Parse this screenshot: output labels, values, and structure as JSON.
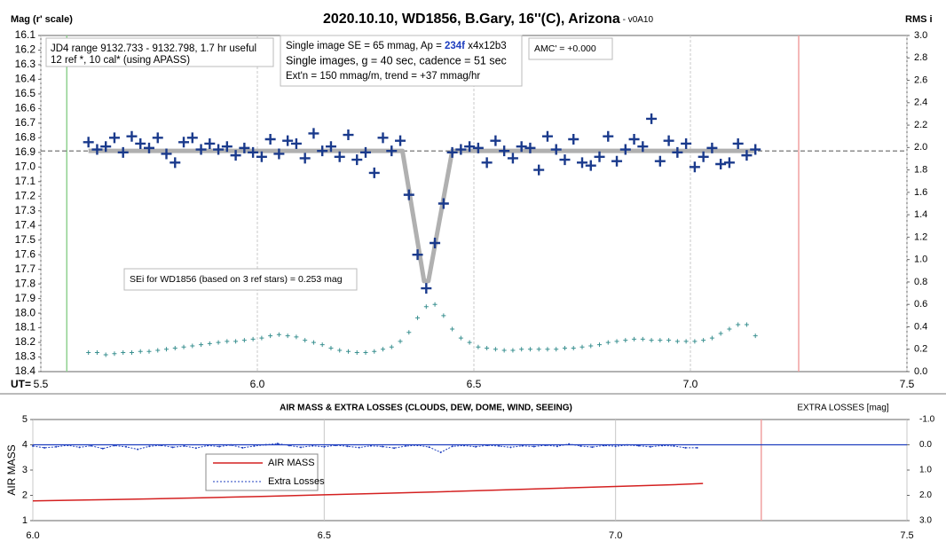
{
  "chart_data": [
    {
      "type": "scatter",
      "title": "2020.10.10, WD1856, B.Gary, 16''(C), Arizona",
      "subtitle": " - v0A10",
      "ylabel": "Mag (r' scale)",
      "y2label": "RMS i",
      "xlabel": "UT=",
      "xlim": [
        5.5,
        7.5
      ],
      "xticks": [
        5.5,
        {
          "value": 6,
          "label": "6.0"
        },
        6.5,
        {
          "value": 7,
          "label": "7.0"
        },
        7.5
      ],
      "ylim": [
        16.1,
        18.4
      ],
      "y_reverse": true,
      "yticks": [
        16.1,
        16.2,
        16.3,
        16.4,
        16.5,
        16.6,
        16.7,
        16.8,
        16.9,
        {
          "value": 17,
          "label": "17.0"
        },
        17.1,
        17.2,
        17.3,
        17.4,
        17.5,
        17.6,
        17.7,
        17.8,
        17.9,
        {
          "value": 18,
          "label": "18.0"
        },
        18.1,
        18.2,
        18.3,
        18.4
      ],
      "y2lim": [
        0,
        3
      ],
      "y2ticks": [
        {
          "value": 0,
          "label": "0.0"
        },
        0.2,
        0.4,
        0.6,
        0.8,
        {
          "value": 1,
          "label": "1.0"
        },
        1.2,
        1.4,
        1.6,
        1.8,
        {
          "value": 2,
          "label": "2.0"
        },
        2.2,
        2.4,
        2.6,
        2.8,
        {
          "value": 3,
          "label": "3.0"
        }
      ],
      "grid": "x",
      "vlines": [
        {
          "value": 5.56,
          "color": "#8fd18f"
        },
        {
          "value": 7.25,
          "color": "#f0a0a0"
        }
      ],
      "hlines": [
        {
          "value": 16.89,
          "color": "#666666",
          "dash": true
        }
      ],
      "x": [
        5.61,
        5.63,
        5.65,
        5.67,
        5.69,
        5.71,
        5.73,
        5.75,
        5.77,
        5.79,
        5.81,
        5.83,
        5.85,
        5.87,
        5.89,
        5.91,
        5.93,
        5.95,
        5.97,
        5.99,
        6.01,
        6.03,
        6.05,
        6.07,
        6.09,
        6.11,
        6.13,
        6.15,
        6.17,
        6.19,
        6.21,
        6.23,
        6.25,
        6.27,
        6.29,
        6.31,
        6.33,
        6.35,
        6.37,
        6.39,
        6.41,
        6.43,
        6.45,
        6.47,
        6.49,
        6.51,
        6.53,
        6.55,
        6.57,
        6.59,
        6.61,
        6.63,
        6.65,
        6.67,
        6.69,
        6.71,
        6.73,
        6.75,
        6.77,
        6.79,
        6.81,
        6.83,
        6.85,
        6.87,
        6.89,
        6.91,
        6.93,
        6.95,
        6.97,
        6.99,
        7.01,
        7.03,
        7.05,
        7.07,
        7.09,
        7.11,
        7.13,
        7.15
      ],
      "series": [
        {
          "color": "#b0b0b0",
          "mode": "line",
          "width": 5,
          "x": [
            5.61,
            6.335,
            6.385,
            6.395,
            6.45,
            7.15
          ],
          "values": [
            16.89,
            16.89,
            17.78,
            17.78,
            16.89,
            16.89
          ]
        },
        {
          "color": "#1a3a8c",
          "mode": "markers",
          "size": 6,
          "values": [
            16.83,
            16.88,
            16.86,
            16.8,
            16.9,
            16.79,
            16.84,
            16.87,
            16.8,
            16.91,
            16.97,
            16.83,
            16.8,
            16.88,
            16.84,
            16.88,
            16.86,
            16.92,
            16.87,
            16.9,
            16.93,
            16.81,
            16.91,
            16.82,
            16.84,
            16.94,
            16.77,
            16.89,
            16.86,
            16.93,
            16.78,
            16.95,
            16.9,
            17.04,
            16.8,
            16.89,
            16.82,
            17.19,
            17.6,
            17.83,
            17.52,
            17.25,
            16.9,
            16.88,
            16.86,
            16.87,
            16.97,
            16.82,
            16.89,
            16.94,
            16.86,
            16.87,
            17.02,
            16.79,
            16.88,
            16.95,
            16.81,
            16.97,
            16.99,
            16.93,
            16.79,
            16.96,
            16.88,
            16.81,
            16.86,
            16.67,
            16.96,
            16.82,
            16.9,
            16.84,
            17,
            16.93,
            16.87,
            16.98,
            16.97,
            16.84,
            16.92,
            16.88
          ]
        },
        {
          "color": "#3a9090",
          "mode": "markers",
          "size": 2.5,
          "axis": "y2",
          "values": [
            0.17,
            0.17,
            0.15,
            0.16,
            0.17,
            0.17,
            0.18,
            0.18,
            0.19,
            0.2,
            0.21,
            0.22,
            0.23,
            0.24,
            0.25,
            0.26,
            0.27,
            0.27,
            0.28,
            0.29,
            0.3,
            0.32,
            0.33,
            0.32,
            0.31,
            0.28,
            0.26,
            0.24,
            0.21,
            0.19,
            0.18,
            0.17,
            0.17,
            0.18,
            0.2,
            0.22,
            0.27,
            0.35,
            0.48,
            0.58,
            0.6,
            0.5,
            0.38,
            0.3,
            0.26,
            0.22,
            0.21,
            0.2,
            0.19,
            0.19,
            0.2,
            0.2,
            0.2,
            0.2,
            0.2,
            0.21,
            0.21,
            0.22,
            0.23,
            0.24,
            0.26,
            0.27,
            0.28,
            0.29,
            0.29,
            0.28,
            0.28,
            0.28,
            0.27,
            0.27,
            0.27,
            0.28,
            0.3,
            0.34,
            0.38,
            0.42,
            0.42,
            0.32
          ]
        }
      ],
      "annotations": [
        {
          "lines": [
            "JD4 range 9132.733 - 9132.798, 1.7 hr useful",
            " 12 ref *, 10 cal* (using APASS)"
          ]
        },
        {
          "lines": [
            [
              "Single image SE = 65 mmag, Ap = ",
              "234f",
              " x4x12b3"
            ],
            "Single images, g = 40 sec, cadence = 51 sec",
            "Ext'n = 150 mmag/m, trend = +37 mmag/hr"
          ]
        },
        {
          "lines": [
            "AMC' = +0.000"
          ]
        },
        {
          "lines": [
            "SEi for WD1856 (based on 3 ref stars) = 0.253 mag"
          ]
        }
      ]
    },
    {
      "type": "line",
      "title": "AIR MASS & EXTRA LOSSES (CLOUDS, DEW, DOME, WIND, SEEING)",
      "ylabel": "AIR MASS",
      "y2label": "EXTRA LOSSES [mag]",
      "xlim": [
        6,
        7.5
      ],
      "xticks": [
        {
          "value": 6,
          "label": "6.0"
        },
        6.5,
        {
          "value": 7,
          "label": "7.0"
        },
        7.5
      ],
      "ylim": [
        1,
        5
      ],
      "yticks": [
        1,
        2,
        3,
        4,
        5
      ],
      "y2lim": [
        -1,
        3
      ],
      "y2_reverse": true,
      "y2ticks": [
        {
          "value": -1,
          "label": "-1.0"
        },
        {
          "value": 0,
          "label": "0.0"
        },
        {
          "value": 1,
          "label": "1.0"
        },
        {
          "value": 2,
          "label": "2.0"
        },
        {
          "value": 3,
          "label": "3.0"
        }
      ],
      "grid": "x",
      "vlines": [
        {
          "value": 7.25,
          "color": "#f0a0a0"
        }
      ],
      "hlines": [
        {
          "value": 0,
          "axis": "y2",
          "color": "#1f3fbf"
        }
      ],
      "series": [
        {
          "name": "AIR MASS",
          "color": "#d42020",
          "mode": "line",
          "width": 1.5,
          "x": [
            6,
            6.1,
            6.2,
            6.3,
            6.4,
            6.5,
            6.6,
            6.7,
            6.8,
            6.9,
            7,
            7.1,
            7.15
          ],
          "values": [
            1.78,
            1.82,
            1.86,
            1.91,
            1.96,
            2.02,
            2.08,
            2.14,
            2.21,
            2.28,
            2.35,
            2.42,
            2.47
          ]
        },
        {
          "name": "Extra Losses",
          "color": "#1f3fbf",
          "mode": "line-markers",
          "width": 1,
          "axis": "y2",
          "x": [
            6,
            6.02,
            6.04,
            6.06,
            6.08,
            6.1,
            6.12,
            6.14,
            6.16,
            6.18,
            6.2,
            6.22,
            6.24,
            6.26,
            6.28,
            6.3,
            6.32,
            6.34,
            6.36,
            6.38,
            6.4,
            6.42,
            6.44,
            6.46,
            6.48,
            6.5,
            6.52,
            6.54,
            6.56,
            6.58,
            6.6,
            6.62,
            6.64,
            6.66,
            6.68,
            6.7,
            6.72,
            6.74,
            6.76,
            6.78,
            6.8,
            6.82,
            6.84,
            6.86,
            6.88,
            6.9,
            6.92,
            6.94,
            6.96,
            6.98,
            7,
            7.02,
            7.04,
            7.06,
            7.08,
            7.1,
            7.12,
            7.14
          ],
          "values": [
            0.05,
            0.12,
            0.08,
            0.02,
            0.1,
            0.04,
            0.15,
            0.03,
            0.08,
            0.18,
            0.06,
            0.02,
            0.1,
            0.05,
            0.13,
            0.03,
            0.07,
            0.01,
            0.12,
            0.05,
            0,
            -0.05,
            0.03,
            0.1,
            0.04,
            0.08,
            0.02,
            0.06,
            0.11,
            0.04,
            0.07,
            0.13,
            0.05,
            0.02,
            0.09,
            0.3,
            0.06,
            0.03,
            0.08,
            0.02,
            0.05,
            0.1,
            0.04,
            0.07,
            0.02,
            0.06,
            -0.03,
            0.05,
            0.09,
            0.03,
            0.06,
            0.01,
            0.04,
            0.08,
            0.03,
            0.05,
            0.12,
            0.12
          ]
        }
      ]
    }
  ]
}
